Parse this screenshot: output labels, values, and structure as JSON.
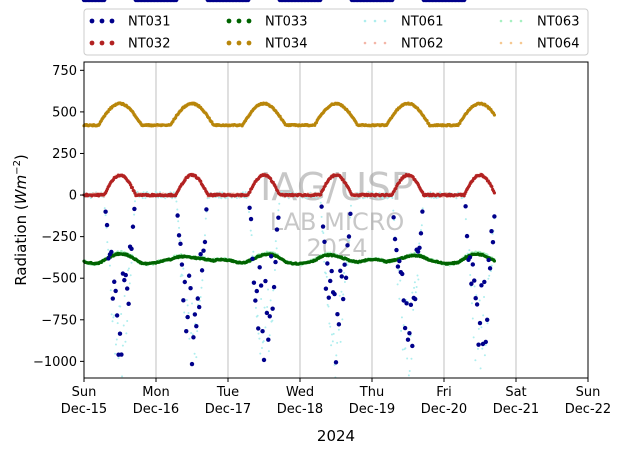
{
  "chart_data": {
    "type": "scatter",
    "ylabel_main": "Radiation (",
    "ylabel_unit": "Wm",
    "ylabel_exp": "−2",
    "ylabel_close": ")",
    "xlabel": "2024",
    "ylim": [
      -1100,
      800
    ],
    "y_ticks": [
      {
        "value": 750,
        "label": "750"
      },
      {
        "value": 500,
        "label": "500"
      },
      {
        "value": 250,
        "label": "250"
      },
      {
        "value": 0,
        "label": "0"
      },
      {
        "value": -250,
        "label": "−250"
      },
      {
        "value": -500,
        "label": "−500"
      },
      {
        "value": -750,
        "label": "−750"
      },
      {
        "value": -1000,
        "label": "−1000"
      }
    ],
    "x_ticks": [
      {
        "day": "Sun",
        "date": "Dec-15"
      },
      {
        "day": "Mon",
        "date": "Dec-16"
      },
      {
        "day": "Tue",
        "date": "Dec-17"
      },
      {
        "day": "Wed",
        "date": "Dec-18"
      },
      {
        "day": "Thu",
        "date": "Dec-19"
      },
      {
        "day": "Fri",
        "date": "Dec-20"
      },
      {
        "day": "Sat",
        "date": "Dec-21"
      },
      {
        "day": "Sun",
        "date": "Dec-22"
      }
    ],
    "xlim_days": [
      0,
      7
    ],
    "grid": "vertical",
    "legend_placement": "top, outside plot",
    "series": [
      {
        "name": "NT031",
        "color": "#00008b",
        "style": "dots"
      },
      {
        "name": "NT032",
        "color": "#b22222",
        "style": "dots"
      },
      {
        "name": "NT033",
        "color": "#006400",
        "style": "dots"
      },
      {
        "name": "NT034",
        "color": "#b8860b",
        "style": "dots"
      },
      {
        "name": "NT061",
        "color": "#aeeeee",
        "style": "dotted"
      },
      {
        "name": "NT062",
        "color": "#f4b6a8",
        "style": "dotted"
      },
      {
        "name": "NT063",
        "color": "#a6f0c0",
        "style": "dotted"
      },
      {
        "name": "NT064",
        "color": "#f6c890",
        "style": "dotted"
      }
    ],
    "approx_series_levels": {
      "NT034_night": 420,
      "NT034_day_peak": 550,
      "NT032_night": 0,
      "NT032_day_peak": 120,
      "NT033_level": -400,
      "NT031_day_min": -1050
    },
    "watermark": {
      "line1": "IAG/USP",
      "line2": "LAB MICRO",
      "line3": "2024"
    }
  }
}
